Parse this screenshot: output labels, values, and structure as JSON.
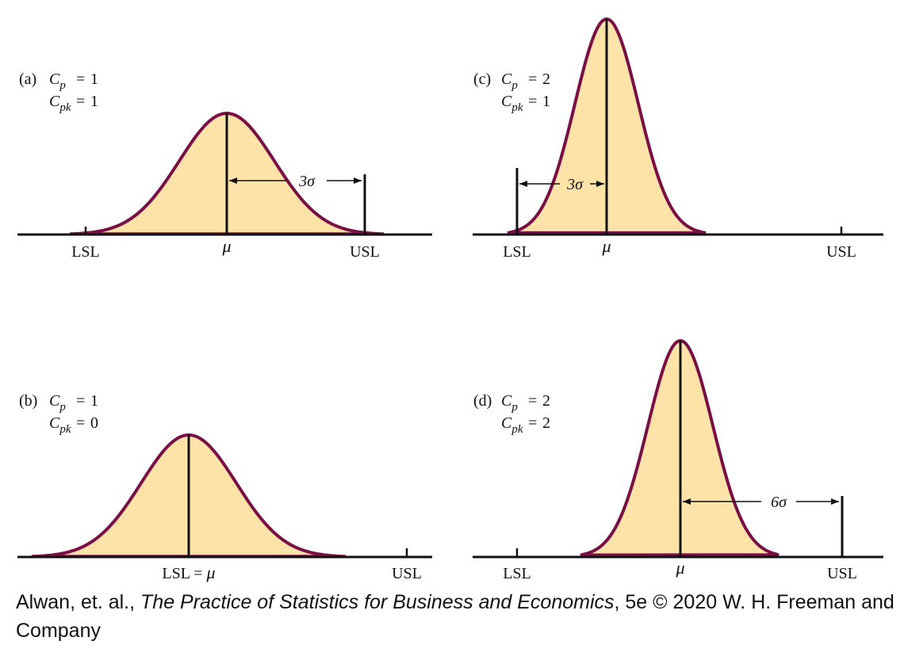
{
  "panels": [
    {
      "id": "a",
      "letter": "(a)",
      "cp": "1",
      "cpk": "1",
      "labels": [
        "LSL",
        "USL"
      ],
      "mu_label": "μ",
      "dim": "3σ"
    },
    {
      "id": "b",
      "letter": "(b)",
      "cp": "1",
      "cpk": "0",
      "labels": [
        "LSL = ",
        "USL"
      ],
      "mu_label": "μ",
      "dim": ""
    },
    {
      "id": "c",
      "letter": "(c)",
      "cp": "2",
      "cpk": "1",
      "labels": [
        "LSL",
        "USL"
      ],
      "mu_label": "μ",
      "dim": "3σ"
    },
    {
      "id": "d",
      "letter": "(d)",
      "cp": "2",
      "cpk": "2",
      "labels": [
        "LSL",
        "USL"
      ],
      "mu_label": "μ",
      "dim": "6σ"
    }
  ],
  "symbols": {
    "C": "C",
    "p": "p",
    "pk": "pk",
    "eq": "="
  },
  "caption": {
    "prefix": "Alwan, et. al., ",
    "book": "The Practice of Statistics for Business and Economics",
    "suffix": ", 5e © 2020 W. H. Freeman and Company"
  },
  "colors": {
    "fill": "#fde3a8",
    "curve": "#7a0f45",
    "ink": "#111111"
  }
}
